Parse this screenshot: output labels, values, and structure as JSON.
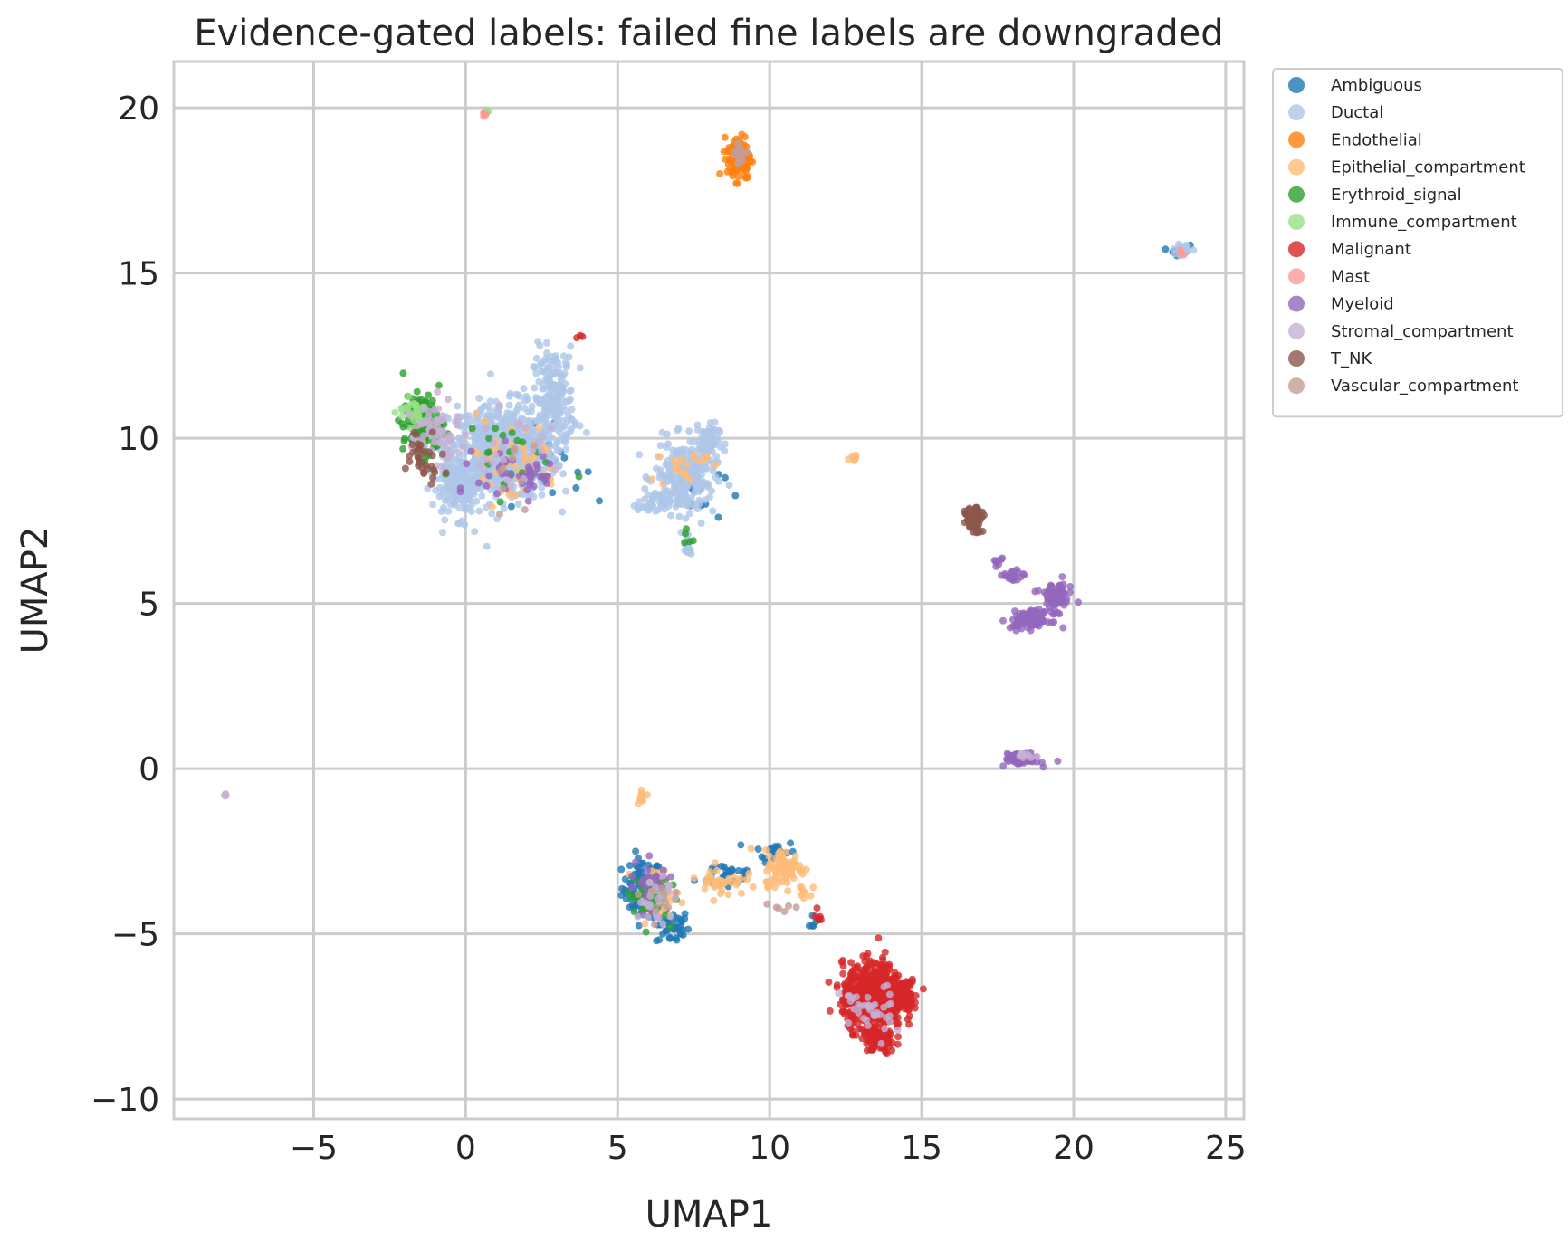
{
  "chart_data": {
    "type": "scatter",
    "title": "Evidence-gated labels: failed fine labels are downgraded",
    "xlabel": "UMAP1",
    "ylabel": "UMAP2",
    "xlim": [
      -9.6,
      25.6
    ],
    "ylim": [
      -10.6,
      21.4
    ],
    "xticks": [
      -5,
      0,
      5,
      10,
      15,
      20,
      25
    ],
    "yticks": [
      -10,
      -5,
      0,
      5,
      10,
      15,
      20
    ],
    "xtick_labels": [
      "−5",
      "0",
      "5",
      "10",
      "15",
      "20",
      "25"
    ],
    "ytick_labels": [
      "−10",
      "−5",
      "0",
      "5",
      "10",
      "15",
      "20"
    ],
    "grid": true,
    "legend_position": "outside-right-top",
    "series": [
      {
        "name": "Ambiguous",
        "color": "#1f77b4",
        "clusters": [
          [
            5.8,
            -3.6,
            0.6,
            0.8,
            90
          ],
          [
            6.8,
            -4.8,
            0.5,
            0.5,
            40
          ],
          [
            8.6,
            -3.2,
            0.9,
            0.4,
            30
          ],
          [
            10.2,
            -2.5,
            0.6,
            0.3,
            25
          ],
          [
            2.3,
            9.2,
            1.4,
            1.0,
            30
          ],
          [
            7.5,
            8.4,
            0.9,
            0.9,
            20
          ],
          [
            23.5,
            15.7,
            0.3,
            0.15,
            10
          ],
          [
            11.4,
            -4.6,
            0.2,
            0.3,
            6
          ]
        ]
      },
      {
        "name": "Ductal",
        "color": "#aec7e8",
        "clusters": [
          [
            1.2,
            9.6,
            1.6,
            1.3,
            650
          ],
          [
            2.9,
            11.2,
            0.6,
            1.4,
            200
          ],
          [
            -0.2,
            8.6,
            0.8,
            0.9,
            150
          ],
          [
            7.2,
            8.8,
            0.9,
            1.0,
            220
          ],
          [
            7.9,
            9.9,
            0.4,
            0.5,
            60
          ],
          [
            6.2,
            8.0,
            0.5,
            0.3,
            40
          ],
          [
            7.3,
            6.8,
            0.15,
            0.4,
            15
          ],
          [
            23.6,
            15.7,
            0.3,
            0.15,
            30
          ]
        ]
      },
      {
        "name": "Endothelial",
        "color": "#ff7f0e",
        "clusters": [
          [
            9.0,
            18.5,
            0.35,
            0.6,
            140
          ]
        ]
      },
      {
        "name": "Epithelial_compartment",
        "color": "#ffbb78",
        "clusters": [
          [
            10.5,
            -3.0,
            0.6,
            0.5,
            90
          ],
          [
            8.4,
            -3.4,
            0.7,
            0.4,
            40
          ],
          [
            1.5,
            9.3,
            1.5,
            1.2,
            50
          ],
          [
            5.8,
            -0.8,
            0.15,
            0.2,
            10
          ],
          [
            12.7,
            9.4,
            0.2,
            0.1,
            8
          ],
          [
            7.2,
            9.2,
            0.7,
            0.6,
            20
          ],
          [
            6.3,
            -3.7,
            0.7,
            0.6,
            30
          ],
          [
            11.2,
            -3.8,
            0.2,
            0.3,
            8
          ]
        ]
      },
      {
        "name": "Erythroid_signal",
        "color": "#2ca02c",
        "clusters": [
          [
            -1.4,
            10.4,
            0.6,
            0.8,
            130
          ],
          [
            6.0,
            -3.8,
            0.6,
            0.7,
            55
          ],
          [
            1.0,
            9.5,
            1.5,
            1.2,
            20
          ],
          [
            7.3,
            7.0,
            0.2,
            0.3,
            5
          ]
        ]
      },
      {
        "name": "Immune_compartment",
        "color": "#98df8a",
        "clusters": [
          [
            -1.7,
            10.8,
            0.5,
            0.4,
            30
          ],
          [
            0.7,
            19.9,
            0.05,
            0.05,
            4
          ]
        ]
      },
      {
        "name": "Malignant",
        "color": "#d62728",
        "clusters": [
          [
            13.4,
            -6.9,
            0.9,
            0.9,
            600
          ],
          [
            13.6,
            -8.2,
            0.5,
            0.4,
            100
          ],
          [
            14.4,
            -6.8,
            0.4,
            0.4,
            70
          ],
          [
            11.6,
            -4.5,
            0.15,
            0.2,
            6
          ],
          [
            3.7,
            13.1,
            0.1,
            0.1,
            3
          ]
        ]
      },
      {
        "name": "Mast",
        "color": "#ff9896",
        "clusters": [
          [
            0.6,
            19.8,
            0.05,
            0.05,
            5
          ],
          [
            23.5,
            15.6,
            0.1,
            0.1,
            4
          ]
        ]
      },
      {
        "name": "Myeloid",
        "color": "#9467bd",
        "clusters": [
          [
            18.6,
            4.5,
            0.6,
            0.25,
            90
          ],
          [
            19.4,
            5.2,
            0.5,
            0.4,
            70
          ],
          [
            18.0,
            5.8,
            0.3,
            0.2,
            20
          ],
          [
            17.5,
            6.3,
            0.2,
            0.2,
            8
          ],
          [
            18.3,
            0.3,
            0.5,
            0.15,
            90
          ],
          [
            1.8,
            8.9,
            1.3,
            0.8,
            45
          ],
          [
            6.0,
            -3.5,
            0.7,
            0.6,
            25
          ]
        ]
      },
      {
        "name": "Stromal_compartment",
        "color": "#c5b0d5",
        "clusters": [
          [
            -1.0,
            10.2,
            0.7,
            0.8,
            60
          ],
          [
            -7.9,
            -0.8,
            0.04,
            0.05,
            5
          ],
          [
            13.2,
            -7.4,
            0.8,
            0.8,
            40
          ],
          [
            6.3,
            -3.9,
            0.6,
            0.6,
            30
          ],
          [
            1.5,
            9.5,
            1.4,
            1.1,
            25
          ],
          [
            18.4,
            0.4,
            0.3,
            0.1,
            10
          ]
        ]
      },
      {
        "name": "T_NK",
        "color": "#8c564b",
        "clusters": [
          [
            16.7,
            7.6,
            0.25,
            0.25,
            70
          ],
          [
            -1.4,
            9.5,
            0.6,
            0.7,
            35
          ],
          [
            16.9,
            7.2,
            0.15,
            0.1,
            6
          ]
        ]
      },
      {
        "name": "Vascular_compartment",
        "color": "#c49c94",
        "clusters": [
          [
            9.0,
            18.6,
            0.2,
            0.3,
            20
          ],
          [
            10.3,
            -4.1,
            0.8,
            0.3,
            6
          ],
          [
            6.4,
            -4.2,
            0.6,
            0.6,
            10
          ],
          [
            2.0,
            9.0,
            1.2,
            1.0,
            10
          ]
        ]
      }
    ]
  }
}
